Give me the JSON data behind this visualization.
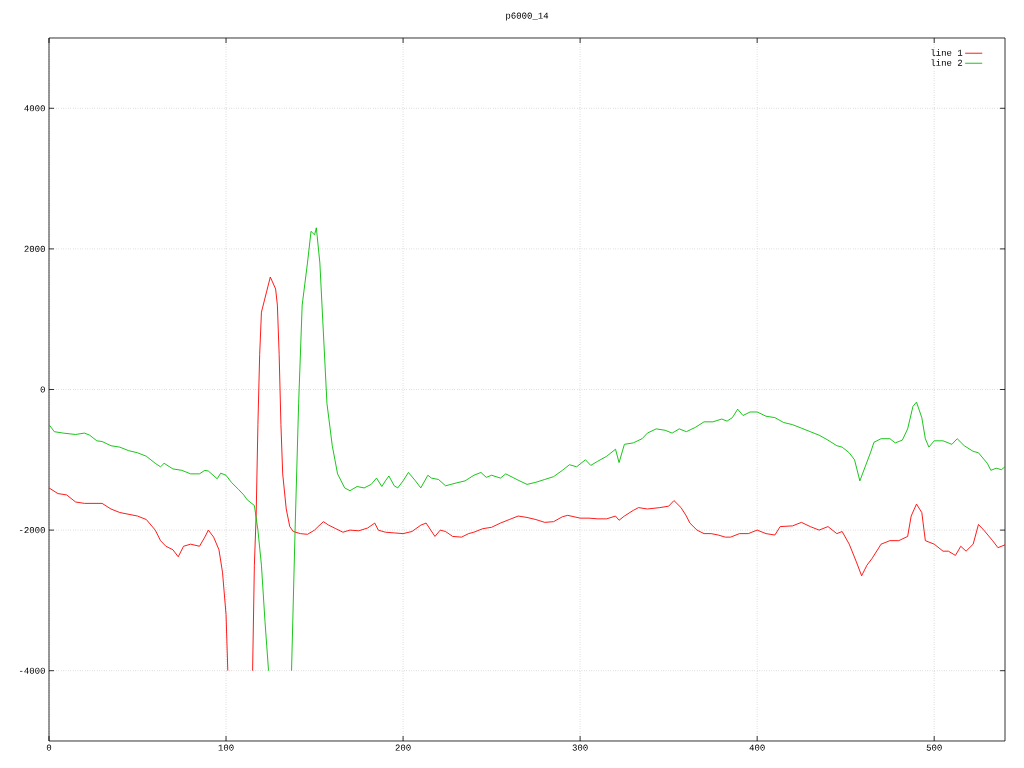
{
  "chart_data": {
    "type": "line",
    "title": "p6000_14",
    "xlim": [
      0,
      540
    ],
    "ylim": [
      -5000,
      5000
    ],
    "xticks": [
      0,
      100,
      200,
      300,
      400,
      500
    ],
    "yticks": [
      -4000,
      -2000,
      0,
      2000,
      4000
    ],
    "grid": true,
    "legend": "top right",
    "series": [
      {
        "name": "line 1",
        "color": "#ff0000",
        "x": [
          0,
          5,
          10,
          15,
          20,
          30,
          35,
          40,
          50,
          55,
          60,
          63,
          66,
          70,
          73,
          76,
          80,
          85,
          88,
          90,
          93,
          96,
          98,
          100,
          101,
          103,
          108,
          114,
          115,
          116,
          117,
          118,
          119,
          120,
          123,
          125,
          128,
          129,
          130,
          131,
          132,
          134,
          136,
          138,
          142,
          146,
          150,
          152,
          155,
          158,
          162,
          166,
          170,
          175,
          180,
          184,
          186,
          190,
          195,
          200,
          205,
          210,
          213,
          218,
          221,
          224,
          228,
          233,
          237,
          240,
          245,
          250,
          255,
          260,
          265,
          270,
          275,
          280,
          285,
          290,
          293,
          300,
          305,
          310,
          315,
          320,
          322,
          325,
          330,
          333,
          338,
          345,
          350,
          353,
          357,
          360,
          362,
          366,
          370,
          374,
          378,
          382,
          385,
          390,
          395,
          400,
          405,
          410,
          413,
          420,
          425,
          430,
          435,
          440,
          445,
          448,
          452,
          456,
          459,
          462,
          465,
          470,
          475,
          480,
          485,
          487,
          490,
          493,
          495,
          500,
          505,
          508,
          512,
          515,
          518,
          522,
          525,
          528,
          533,
          536,
          540
        ],
        "values": [
          -1400,
          -1480,
          -1500,
          -1600,
          -1620,
          -1620,
          -1700,
          -1750,
          -1800,
          -1850,
          -2000,
          -2150,
          -2230,
          -2280,
          -2380,
          -2230,
          -2200,
          -2230,
          -2100,
          -2000,
          -2100,
          -2280,
          -2600,
          -3200,
          -4000,
          null,
          null,
          null,
          -4000,
          -2500,
          -1800,
          -500,
          500,
          1100,
          1400,
          1600,
          1430,
          1200,
          500,
          -500,
          -1200,
          -1700,
          -1950,
          -2020,
          -2050,
          -2060,
          -2000,
          -1950,
          -1880,
          -1930,
          -1980,
          -2030,
          -2000,
          -2010,
          -1970,
          -1900,
          -2000,
          -2030,
          -2040,
          -2050,
          -2020,
          -1930,
          -1900,
          -2090,
          -2000,
          -2020,
          -2090,
          -2100,
          -2050,
          -2030,
          -1980,
          -1960,
          -1900,
          -1850,
          -1800,
          -1820,
          -1850,
          -1890,
          -1880,
          -1810,
          -1790,
          -1830,
          -1830,
          -1840,
          -1840,
          -1800,
          -1860,
          -1800,
          -1720,
          -1680,
          -1700,
          -1680,
          -1660,
          -1580,
          -1680,
          -1800,
          -1900,
          -2000,
          -2050,
          -2050,
          -2070,
          -2100,
          -2100,
          -2050,
          -2050,
          -2000,
          -2050,
          -2070,
          -1950,
          -1940,
          -1890,
          -1950,
          -2000,
          -1950,
          -2050,
          -2020,
          -2200,
          -2450,
          -2650,
          -2500,
          -2400,
          -2200,
          -2150,
          -2150,
          -2090,
          -1800,
          -1630,
          -1750,
          -2150,
          -2200,
          -2300,
          -2300,
          -2360,
          -2230,
          -2300,
          -2200,
          -1920,
          -2000,
          -2150,
          -2250,
          -2210
        ]
      },
      {
        "name": "line 2",
        "color": "#00c000",
        "x": [
          0,
          3,
          8,
          15,
          20,
          23,
          27,
          30,
          35,
          40,
          45,
          50,
          55,
          60,
          63,
          65,
          70,
          75,
          80,
          85,
          88,
          90,
          95,
          97,
          100,
          103,
          107,
          110,
          112,
          116,
          118,
          120,
          122,
          124,
          126,
          130,
          135,
          137,
          139,
          141,
          143,
          146,
          148,
          150,
          151,
          153,
          155,
          157,
          160,
          163,
          167,
          170,
          174,
          178,
          182,
          185,
          188,
          190,
          192,
          195,
          197,
          200,
          203,
          207,
          210,
          214,
          216,
          220,
          224,
          227,
          230,
          235,
          240,
          244,
          247,
          250,
          255,
          258,
          265,
          270,
          275,
          280,
          285,
          290,
          294,
          298,
          303,
          306,
          310,
          315,
          320,
          322,
          325,
          330,
          335,
          338,
          343,
          348,
          352,
          356,
          360,
          365,
          370,
          375,
          380,
          383,
          386,
          389,
          392,
          396,
          400,
          405,
          410,
          415,
          420,
          425,
          430,
          435,
          440,
          445,
          448,
          452,
          455,
          458,
          461,
          464,
          466,
          470,
          475,
          478,
          482,
          485,
          488,
          490,
          493,
          495,
          497,
          500,
          505,
          510,
          513,
          517,
          522,
          525,
          530,
          532,
          535,
          538,
          540
        ],
        "values": [
          -500,
          -600,
          -620,
          -640,
          -620,
          -650,
          -730,
          -740,
          -800,
          -820,
          -870,
          -900,
          -950,
          -1050,
          -1100,
          -1050,
          -1130,
          -1150,
          -1200,
          -1200,
          -1150,
          -1160,
          -1270,
          -1190,
          -1220,
          -1320,
          -1420,
          -1500,
          -1570,
          -1650,
          -2000,
          -2500,
          -3300,
          -4000,
          null,
          null,
          null,
          -4000,
          -2000,
          -200,
          1200,
          1800,
          2250,
          2200,
          2300,
          1800,
          800,
          -200,
          -800,
          -1200,
          -1400,
          -1440,
          -1380,
          -1400,
          -1350,
          -1260,
          -1380,
          -1300,
          -1230,
          -1370,
          -1400,
          -1300,
          -1180,
          -1300,
          -1400,
          -1220,
          -1260,
          -1280,
          -1370,
          -1350,
          -1330,
          -1300,
          -1220,
          -1180,
          -1250,
          -1220,
          -1260,
          -1200,
          -1290,
          -1350,
          -1320,
          -1280,
          -1240,
          -1150,
          -1070,
          -1100,
          -1000,
          -1080,
          -1020,
          -950,
          -850,
          -1040,
          -780,
          -760,
          -700,
          -620,
          -560,
          -580,
          -620,
          -560,
          -600,
          -540,
          -460,
          -460,
          -420,
          -450,
          -400,
          -280,
          -370,
          -320,
          -320,
          -380,
          -400,
          -470,
          -500,
          -550,
          -600,
          -650,
          -720,
          -800,
          -820,
          -900,
          -1000,
          -1300,
          -1100,
          -900,
          -750,
          -700,
          -700,
          -760,
          -720,
          -560,
          -240,
          -180,
          -400,
          -700,
          -820,
          -730,
          -730,
          -780,
          -700,
          -800,
          -880,
          -900,
          -1050,
          -1150,
          -1120,
          -1140,
          -1100
        ]
      }
    ]
  }
}
